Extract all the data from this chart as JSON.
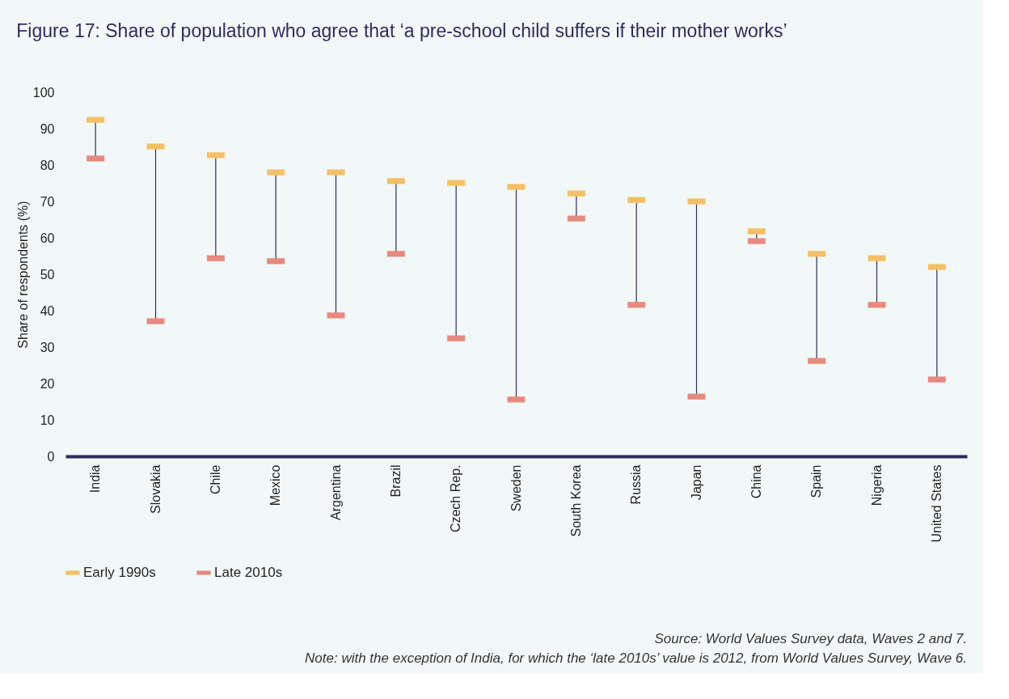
{
  "chart_data": {
    "type": "scatter",
    "title": "Figure 17: Share of population who agree that ‘a pre-school child suffers if their mother works’",
    "ylabel": "Share of respondents (%)",
    "categories": [
      "India",
      "Slovakia",
      "Chile",
      "Mexico",
      "Argentina",
      "Brazil",
      "Czech Rep.",
      "Sweden",
      "South Korea",
      "Russia",
      "Japan",
      "China",
      "Spain",
      "Nigeria",
      "United States"
    ],
    "series": [
      {
        "name": "Early 1990s",
        "color": "#f5c065",
        "values": [
          92.4,
          85.1,
          82.7,
          78,
          78,
          75.6,
          75.1,
          74,
          72.2,
          70.4,
          70,
          61.8,
          55.6,
          54.4,
          52
        ]
      },
      {
        "name": "Late 2010s",
        "color": "#e8897f",
        "values": [
          81.8,
          37.1,
          54.4,
          53.6,
          38.7,
          55.6,
          32.4,
          15.6,
          65.3,
          41.6,
          16.4,
          59.1,
          26.2,
          41.6,
          21.1
        ]
      }
    ],
    "ylim": [
      0,
      100
    ],
    "yticks": [
      0,
      10,
      20,
      30,
      40,
      50,
      60,
      70,
      80,
      90,
      100
    ],
    "grid": false,
    "legend": "bottom left",
    "annotations": [
      "Source: World Values Survey data, Waves 2 and 7.",
      "Note: with the exception of India, for which the ‘late 2010s’ value is 2012, from World Values Survey, Wave 6."
    ]
  }
}
